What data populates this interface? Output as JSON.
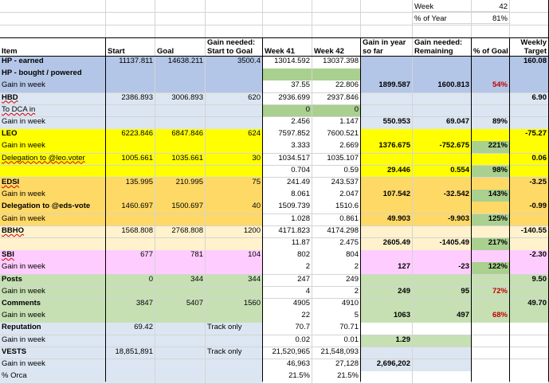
{
  "colors": {
    "blue": "#b4c6e7",
    "blue_light": "#dce6f2",
    "yellow": "#ffff00",
    "orange": "#ffd966",
    "peach": "#fff2cc",
    "pink": "#ffccff",
    "green_light": "#c6e0b4",
    "green": "#70ad47",
    "green_cell": "#a9d08e",
    "grid": "#d4d4d4",
    "dark_line": "#000000",
    "red_text": "#c00000"
  },
  "top": {
    "week_label": "Week",
    "week_value": "42",
    "pct_year_label": "% of Year",
    "pct_year_value": "81%"
  },
  "header": {
    "item": "Item",
    "start": "Start",
    "goal": "Goal",
    "gain_needed_1": "Gain needed:",
    "gain_needed_2": "Start to Goal",
    "week41": "Week 41",
    "week42": "Week 42",
    "gain_year_1": "Gain in year",
    "gain_year_2": "so far",
    "remaining_1": "Gain needed:",
    "remaining_2": "Remaining",
    "pct_goal": "% of Goal",
    "weekly_1": "Weekly",
    "weekly_2": "Target"
  },
  "rows": [
    {
      "item": "HP - earned",
      "start": "11137.811",
      "goal": "14638.211",
      "need": "3500.4",
      "w41": "13014.592",
      "w42": "13037.398",
      "weekly": "160.08"
    },
    {
      "item": "HP - bought / powered"
    },
    {
      "item": "Gain in week",
      "w41": "37.55",
      "w42": "22.806",
      "gain": "1899.587",
      "remain": "1600.813",
      "pct": "54%"
    },
    {
      "item": "HBD",
      "start": "2386.893",
      "goal": "3006.893",
      "need": "620",
      "w41": "2936.699",
      "w42": "2937.846",
      "weekly": "6.90"
    },
    {
      "item": "To DCA in",
      "w41": "0",
      "w42": "0"
    },
    {
      "item": "Gain in week",
      "w41": "2.456",
      "w42": "1.147",
      "gain": "550.953",
      "remain": "69.047",
      "pct": "89%"
    },
    {
      "item": "LEO",
      "start": "6223.846",
      "goal": "6847.846",
      "need": "624",
      "w41": "7597.852",
      "w42": "7600.521",
      "weekly": "-75.27"
    },
    {
      "item": "Gain in week",
      "w41": "3.333",
      "w42": "2.669",
      "gain": "1376.675",
      "remain": "-752.675",
      "pct": "221%"
    },
    {
      "item": "Delegation to @leo.voter",
      "start": "1005.661",
      "goal": "1035.661",
      "need": "30",
      "w41": "1034.517",
      "w42": "1035.107",
      "weekly": "0.06"
    },
    {
      "item": "",
      "w41": "0.704",
      "w42": "0.59",
      "gain": "29.446",
      "remain": "0.554",
      "pct": "98%"
    },
    {
      "item": "EDSI",
      "start": "135.995",
      "goal": "210.995",
      "need": "75",
      "w41": "241.49",
      "w42": "243.537",
      "weekly": "-3.25"
    },
    {
      "item": "Gain in week",
      "w41": "8.061",
      "w42": "2.047",
      "gain": "107.542",
      "remain": "-32.542",
      "pct": "143%"
    },
    {
      "item": "Delegation to @eds-vote",
      "start": "1460.697",
      "goal": "1500.697",
      "need": "40",
      "w41": "1509.739",
      "w42": "1510.6",
      "weekly": "-0.99"
    },
    {
      "item": "Gain in week",
      "w41": "1.028",
      "w42": "0.861",
      "gain": "49.903",
      "remain": "-9.903",
      "pct": "125%"
    },
    {
      "item": "BBHO",
      "start": "1568.808",
      "goal": "2768.808",
      "need": "1200",
      "w41": "4171.823",
      "w42": "4174.298",
      "weekly": "-140.55"
    },
    {
      "item": "",
      "w41": "11.87",
      "w42": "2.475",
      "gain": "2605.49",
      "remain": "-1405.49",
      "pct": "217%"
    },
    {
      "item": "SBI",
      "start": "677",
      "goal": "781",
      "need": "104",
      "w41": "802",
      "w42": "804",
      "weekly": "-2.30"
    },
    {
      "item": "Gain in week",
      "w41": "2",
      "w42": "2",
      "gain": "127",
      "remain": "-23",
      "pct": "122%"
    },
    {
      "item": "Posts",
      "start": "0",
      "goal": "344",
      "need": "344",
      "w41": "247",
      "w42": "249",
      "weekly": "9.50"
    },
    {
      "item": "Gain in week",
      "w41": "4",
      "w42": "2",
      "gain": "249",
      "remain": "95",
      "pct": "72%"
    },
    {
      "item": "Comments",
      "start": "3847",
      "goal": "5407",
      "need": "1560",
      "w41": "4905",
      "w42": "4910",
      "weekly": "49.70"
    },
    {
      "item": "Gain in week",
      "w41": "22",
      "w42": "5",
      "gain": "1063",
      "remain": "497",
      "pct": "68%"
    },
    {
      "item": "Reputation",
      "start": "69.42",
      "need": "Track only",
      "w41": "70.7",
      "w42": "70.71"
    },
    {
      "item": "Gain in week",
      "w41": "0.02",
      "w42": "0.01",
      "gain": "1.29"
    },
    {
      "item": "VESTS",
      "start": "18,851,891",
      "need": "Track only",
      "w41": "21,520,965",
      "w42": "21,548,093"
    },
    {
      "item": "Gain in week",
      "w41": "46,963",
      "w42": "27,128",
      "gain": "2,696,202"
    },
    {
      "item": "% Orca",
      "w41": "21.5%",
      "w42": "21.5%"
    }
  ]
}
